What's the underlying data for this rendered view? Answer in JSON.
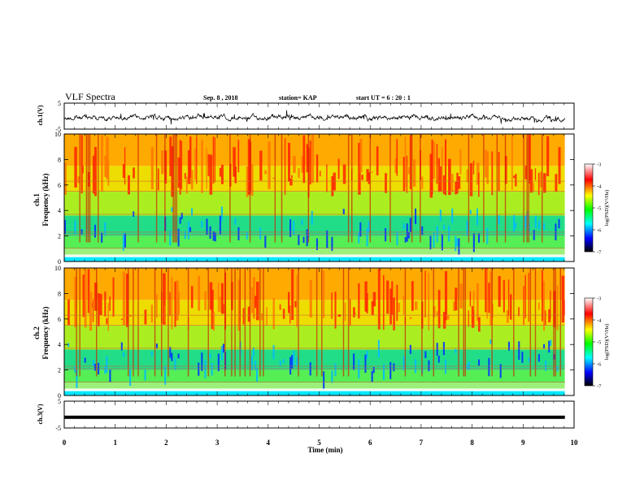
{
  "header": {
    "title": "VLF Spectra",
    "date": "Sep. 8 , 2018",
    "station": "station= KAP",
    "start": "start UT =  6 : 20 : 1"
  },
  "chart_data": [
    {
      "type": "line",
      "name": "ch1-waveform",
      "ylabel": "ch.1(V)",
      "ylim": [
        -5,
        5
      ],
      "yticks": [
        "5",
        "-5"
      ],
      "xlim": [
        0,
        10
      ]
    },
    {
      "type": "heatmap",
      "name": "ch1-spectrogram",
      "ylabel_line1": "ch.1",
      "ylabel_line2": "Frequency (kHz)",
      "ylim": [
        0,
        10
      ],
      "yticks": [
        "0",
        "2",
        "4",
        "6",
        "8",
        "10"
      ],
      "xlim": [
        0,
        9.8
      ],
      "colorbar": {
        "label": "log(PSD)(V²/Hz)",
        "range": [
          -7,
          -3
        ],
        "ticks": [
          "-3",
          "-4",
          "-5",
          "-6",
          "-7"
        ],
        "colors": [
          "#ffffff",
          "#ff0000",
          "#ffff00",
          "#00ff00",
          "#00ffff",
          "#0000ff",
          "#000000"
        ]
      }
    },
    {
      "type": "heatmap",
      "name": "ch2-spectrogram",
      "ylabel_line1": "ch.2",
      "ylabel_line2": "Frequency (kHz)",
      "ylim": [
        0,
        10
      ],
      "yticks": [
        "0",
        "2",
        "4",
        "6",
        "8",
        "10"
      ],
      "xlim": [
        0,
        9.8
      ],
      "colorbar": {
        "label": "log(PSD)(V²/Hz)",
        "range": [
          -7,
          -3
        ],
        "ticks": [
          "-3",
          "-4",
          "-5",
          "-6",
          "-7"
        ],
        "colors": [
          "#ffffff",
          "#ff0000",
          "#ffff00",
          "#00ff00",
          "#00ffff",
          "#0000ff",
          "#000000"
        ]
      }
    },
    {
      "type": "line",
      "name": "ch3-waveform",
      "ylabel": "ch.3(V)",
      "ylim": [
        -5,
        5
      ],
      "yticks": [
        "5",
        "-5"
      ],
      "level": -1,
      "xlim": [
        0,
        9.8
      ],
      "xlabel": "Time (min)",
      "xticks": [
        "0",
        "1",
        "2",
        "3",
        "4",
        "5",
        "6",
        "7",
        "8",
        "9",
        "10"
      ]
    }
  ]
}
